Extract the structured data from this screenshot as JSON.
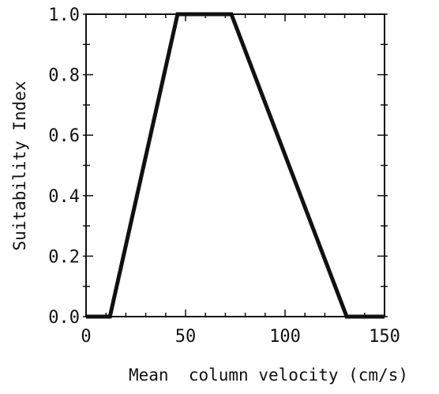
{
  "chart_data": {
    "type": "line",
    "title": "",
    "xlabel": "Mean  column velocity (cm/s)",
    "ylabel": "Suitability Index",
    "xlim": [
      0,
      150
    ],
    "ylim": [
      0,
      1.0
    ],
    "x_major_ticks": [
      0,
      50,
      100,
      150
    ],
    "x_minor_step": 10,
    "y_major_ticks": [
      0,
      0.2,
      0.4,
      0.6,
      0.8,
      1.0
    ],
    "y_minor_step": 0.1,
    "x_tick_labels": [
      "0",
      "50",
      "100",
      "150"
    ],
    "y_tick_labels": [
      "0.0",
      "0.2",
      "0.4",
      "0.6",
      "0.8",
      "1.0"
    ],
    "grid": false,
    "legend": "none",
    "series": [
      {
        "x": [
          0,
          12,
          46,
          73,
          131,
          150
        ],
        "y": [
          0,
          0,
          1.0,
          1.0,
          0,
          0
        ],
        "color": "#111111"
      }
    ]
  }
}
